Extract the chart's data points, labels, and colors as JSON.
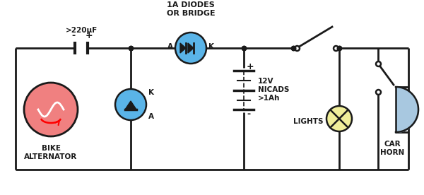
{
  "bg_color": "#ffffff",
  "line_color": "#1a1a1a",
  "line_width": 2.0,
  "colors": {
    "alternator": "#f08080",
    "diode": "#5ab4e8",
    "bulb": "#f0ee9a",
    "speaker": "#a8c8e0"
  },
  "labels": {
    "capacitor": ">220μF",
    "diode_label": "1A DIODES\nOR BRIDGE",
    "battery_label": "12V\nNICADS\n>1Ah",
    "alternator_label": "BIKE\nALTERNATOR",
    "lights_label": "LIGHTS",
    "horn_label": "CAR\nHORN"
  }
}
